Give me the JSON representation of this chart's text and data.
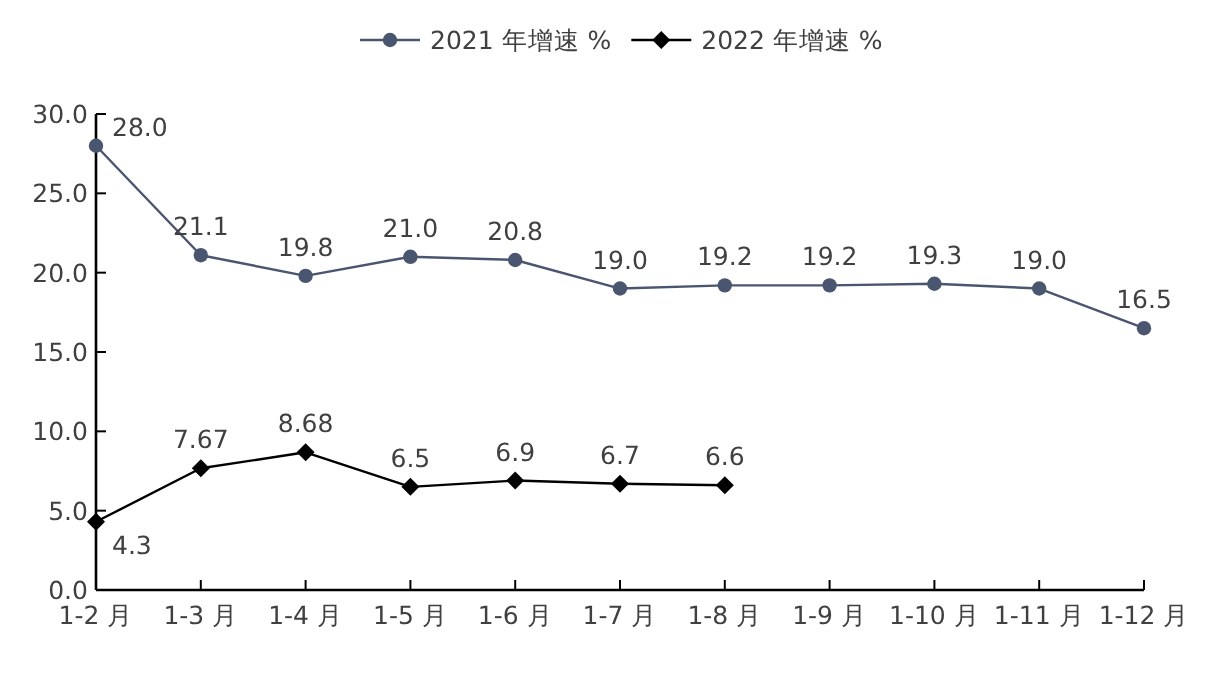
{
  "chart_data": {
    "type": "line",
    "categories": [
      "1-2 月",
      "1-3 月",
      "1-4 月",
      "1-5 月",
      "1-6 月",
      "1-7 月",
      "1-8 月",
      "1-9 月",
      "1-10 月",
      "1-11 月",
      "1-12 月"
    ],
    "series": [
      {
        "name": "2021 年增速 %",
        "color": "#4a5570",
        "marker": "circle",
        "values": [
          28.0,
          21.1,
          19.8,
          21.0,
          20.8,
          19.0,
          19.2,
          19.2,
          19.3,
          19.0,
          16.5
        ],
        "value_labels": [
          "28.0",
          "21.1",
          "19.8",
          "21.0",
          "20.8",
          "19.0",
          "19.2",
          "19.2",
          "19.3",
          "19.0",
          "16.5"
        ]
      },
      {
        "name": "2022 年增速 %",
        "color": "#000000",
        "marker": "diamond",
        "values": [
          4.3,
          7.67,
          8.68,
          6.5,
          6.9,
          6.7,
          6.6,
          null,
          null,
          null,
          null
        ],
        "value_labels": [
          "4.3",
          "7.67",
          "8.68",
          "6.5",
          "6.9",
          "6.7",
          "6.6",
          null,
          null,
          null,
          null
        ]
      }
    ],
    "ylim": [
      0,
      30
    ],
    "yticks": [
      {
        "value": 0,
        "label": "0.0"
      },
      {
        "value": 5,
        "label": "5.0"
      },
      {
        "value": 10,
        "label": "10.0"
      },
      {
        "value": 15,
        "label": "15.0"
      },
      {
        "value": 20,
        "label": "20.0"
      },
      {
        "value": 25,
        "label": "25.0"
      },
      {
        "value": 30,
        "label": "30.0"
      }
    ],
    "legend": "top",
    "grid": false,
    "line_style": "solid"
  }
}
